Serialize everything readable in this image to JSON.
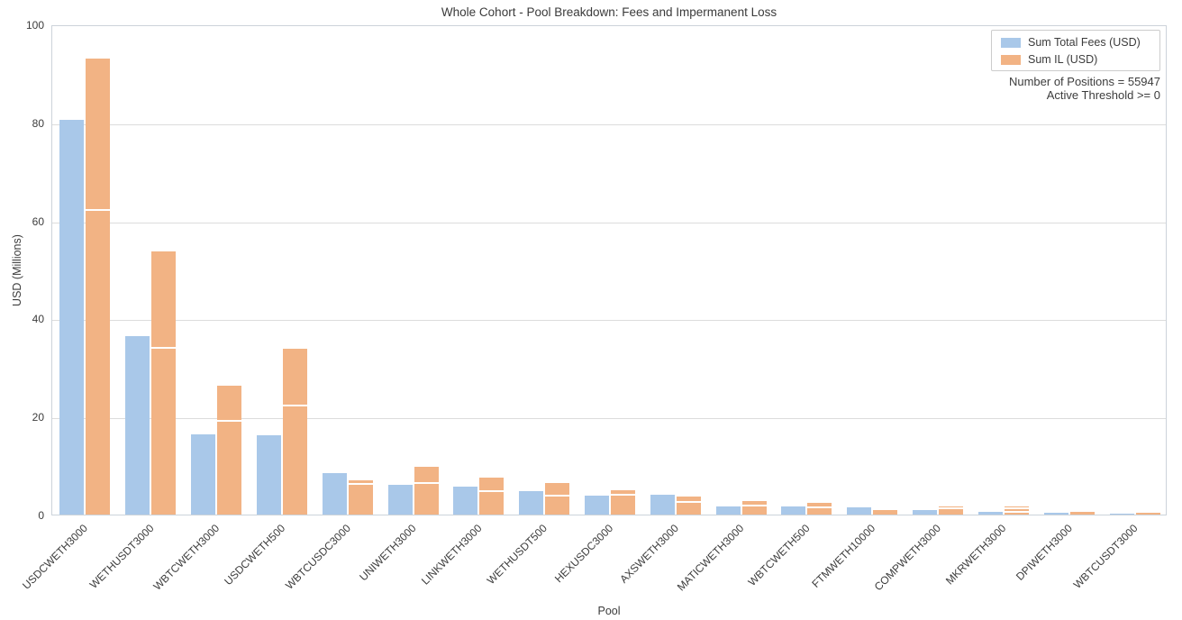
{
  "chart_data": {
    "type": "bar",
    "title": "Whole Cohort - Pool Breakdown: Fees and Impermanent Loss",
    "xlabel": "Pool",
    "ylabel": "USD (Millions)",
    "ylim": [
      0,
      100
    ],
    "yticks": [
      0,
      20,
      40,
      60,
      80,
      100
    ],
    "grid": "horizontal",
    "legend_position": "upper right",
    "categories": [
      "USDCWETH3000",
      "WETHUSDT3000",
      "WBTCWETH3000",
      "USDCWETH500",
      "WBTCUSDC3000",
      "UNIWETH3000",
      "LINKWETH3000",
      "WETHUSDT500",
      "HEXUSDC3000",
      "AXSWETH3000",
      "MATICWETH3000",
      "WBTCWETH500",
      "FTMWETH10000",
      "COMPWETH3000",
      "MKRWETH3000",
      "DPIWETH3000",
      "WBTCUSDT3000"
    ],
    "series": [
      {
        "name": "Sum Total Fees (USD)",
        "color": "#a9c8e9",
        "values": [
          80.6,
          36.4,
          16.3,
          16.1,
          8.4,
          6.0,
          5.7,
          4.8,
          3.9,
          4.0,
          1.7,
          1.7,
          1.5,
          0.9,
          0.6,
          0.3,
          0.1
        ]
      },
      {
        "name": "Sum IL (USD)",
        "color": "#f2b384",
        "values": [
          93.0,
          53.6,
          26.2,
          33.8,
          7.0,
          9.7,
          7.5,
          6.4,
          5.0,
          3.7,
          2.7,
          2.4,
          1.0,
          1.7,
          1.7,
          0.5,
          0.3
        ],
        "segment_lines": [
          [
            62.0
          ],
          [
            33.8
          ],
          [
            18.9
          ],
          [
            22.0
          ],
          [
            6.1
          ],
          [
            6.3
          ],
          [
            4.6
          ],
          [
            3.7
          ],
          [
            3.9
          ],
          [
            2.4
          ],
          [
            1.7
          ],
          [
            1.3
          ],
          [],
          [
            1.1
          ],
          [
            1.05,
            0.4
          ],
          [],
          []
        ]
      }
    ],
    "annotations": [
      "Number of Positions = 55947",
      "Active Threshold >= 0"
    ],
    "colors": {
      "fees_bar": "#a9c8e9",
      "il_bar": "#f2b384",
      "gridline": "#dcdcdc",
      "spine": "#ccd3da",
      "text": "#3c3c3c",
      "segment_line": "#ffffff"
    }
  }
}
